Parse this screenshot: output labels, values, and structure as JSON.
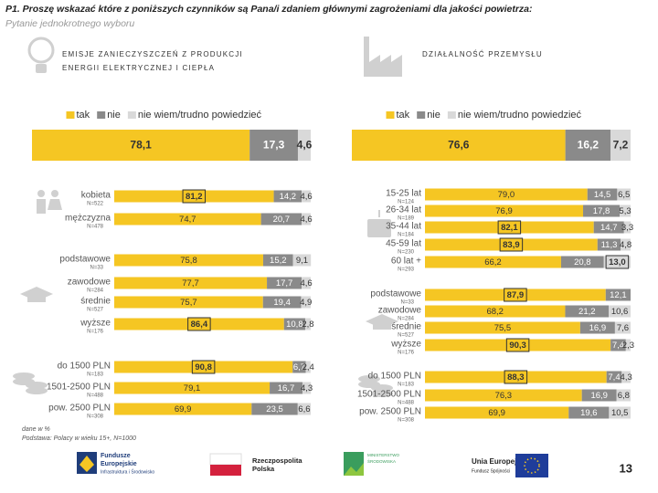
{
  "header": {
    "title": "P1. Proszę wskazać które z poniższych czynników są Pana/i zdaniem głównymi zagrożeniami dla jakości powietrza:",
    "subtitle": "Pytanie jednokrotnego wyboru"
  },
  "chart_data": [
    {
      "type": "stacked_bar_h",
      "title": "EMISJE ZANIECZYSZCZEŃ Z PRODUKCJI ENERGII ELEKTRYCZNEJ I CIEPŁA",
      "xlim": [
        0,
        100
      ],
      "categories": [
        null,
        "kobieta",
        "mężczyzna",
        "podstawowe",
        "zawodowe",
        "średnie",
        "wyższe",
        "do 1500 PLN",
        "1501-2500 PLN",
        "pow. 2500 PLN"
      ],
      "n_labels": [
        null,
        "N=522",
        "N=478",
        "N=33",
        "N=284",
        "N=527",
        "N=176",
        "N=183",
        "N=488",
        "N=308"
      ],
      "series": [
        {
          "name": "tak",
          "color": "#f5c623",
          "values": [
            78.1,
            81.2,
            74.7,
            75.8,
            77.7,
            75.7,
            86.4,
            90.8,
            79.1,
            69.9
          ],
          "value_labels": [
            "78,1",
            "81,2",
            "74,7",
            "75,8",
            "77,7",
            "75,7",
            "86,4",
            "90,8",
            "79,1",
            "69,9"
          ]
        },
        {
          "name": "nie",
          "color": "#8a8a8a",
          "values": [
            17.3,
            14.2,
            20.7,
            15.2,
            17.7,
            19.4,
            10.8,
            6.7,
            16.7,
            23.5
          ],
          "value_labels": [
            "17,3",
            "14,2",
            "20,7",
            "15,2",
            "17,7",
            "19,4",
            "10,8",
            "6,7",
            "16,7",
            "23,5"
          ]
        },
        {
          "name": "nie wiem/trudno powiedzieć",
          "color": "#d9d9d9",
          "values": [
            4.6,
            4.6,
            4.6,
            9.1,
            4.6,
            4.9,
            2.8,
            2.4,
            4.3,
            6.6
          ],
          "value_labels": [
            "4,6",
            "4,6",
            "4,6",
            "9,1",
            "4,6",
            "4,9",
            "2,8",
            "2,4",
            "4,3",
            "6,6"
          ]
        }
      ],
      "highlight": [
        [
          0,
          1
        ],
        [
          0,
          6
        ],
        [
          0,
          7
        ]
      ]
    },
    {
      "type": "stacked_bar_h",
      "title": "DZIAŁALNOŚĆ PRZEMYSŁU",
      "xlim": [
        0,
        100
      ],
      "categories": [
        null,
        "15-25 lat",
        "26-34 lat",
        "35-44 lat",
        "45-59 lat",
        "60 lat +",
        "podstawowe",
        "zawodowe",
        "średnie",
        "wyższe",
        "do 1500 PLN",
        "1501-2500 PLN",
        "pow. 2500 PLN"
      ],
      "n_labels": [
        null,
        "N=124",
        "N=189",
        "N=184",
        "N=230",
        "N=293",
        "N=33",
        "N=284",
        "N=527",
        "N=176",
        "N=183",
        "N=488",
        "N=308"
      ],
      "series": [
        {
          "name": "tak",
          "color": "#f5c623",
          "values": [
            76.6,
            79.0,
            76.9,
            82.1,
            83.9,
            66.2,
            87.9,
            68.2,
            75.5,
            90.3,
            88.3,
            76.3,
            69.9
          ],
          "value_labels": [
            "76,6",
            "79,0",
            "76,9",
            "82,1",
            "83,9",
            "66,2",
            "87,9",
            "68,2",
            "75,5",
            "90,3",
            "88,3",
            "76,3",
            "69,9"
          ]
        },
        {
          "name": "nie",
          "color": "#8a8a8a",
          "values": [
            16.2,
            14.5,
            17.8,
            14.7,
            11.3,
            20.8,
            12.1,
            21.2,
            16.9,
            7.4,
            7.4,
            16.9,
            19.6
          ],
          "value_labels": [
            "16,2",
            "14,5",
            "17,8",
            "14,7",
            "11,3",
            "20,8",
            "12,1",
            "21,2",
            "16,9",
            "7,4",
            "7,4",
            "16,9",
            "19,6"
          ]
        },
        {
          "name": "nie wiem/trudno powiedzieć",
          "color": "#d9d9d9",
          "values": [
            7.2,
            6.5,
            5.3,
            3.3,
            4.8,
            13.0,
            null,
            10.6,
            7.6,
            2.3,
            4.3,
            6.8,
            10.5
          ],
          "value_labels": [
            "7,2",
            "6,5",
            "5,3",
            "3,3",
            "4,8",
            "13,0",
            null,
            "10,6",
            "7,6",
            "2,3",
            "4,3",
            "6,8",
            "10,5"
          ]
        }
      ],
      "highlight": [
        [
          0,
          3
        ],
        [
          0,
          4
        ],
        [
          2,
          5
        ],
        [
          0,
          6
        ],
        [
          0,
          9
        ],
        [
          0,
          10
        ]
      ]
    }
  ],
  "footer": {
    "note": "dane w %",
    "base": "Podstawa: Polacy w wieku 15+, N=1000",
    "logo1a": "Fundusze",
    "logo1b": "Europejskie",
    "logo1c": "Infrastruktura i Środowisko",
    "logo2a": "Rzeczpospolita",
    "logo2b": "Polska",
    "logo3a": "MINISTERSTWO",
    "logo3b": "ŚRODOWISKA",
    "logo4a": "Unia Europejska",
    "logo4b": "Fundusz Spójności",
    "page": "13"
  }
}
